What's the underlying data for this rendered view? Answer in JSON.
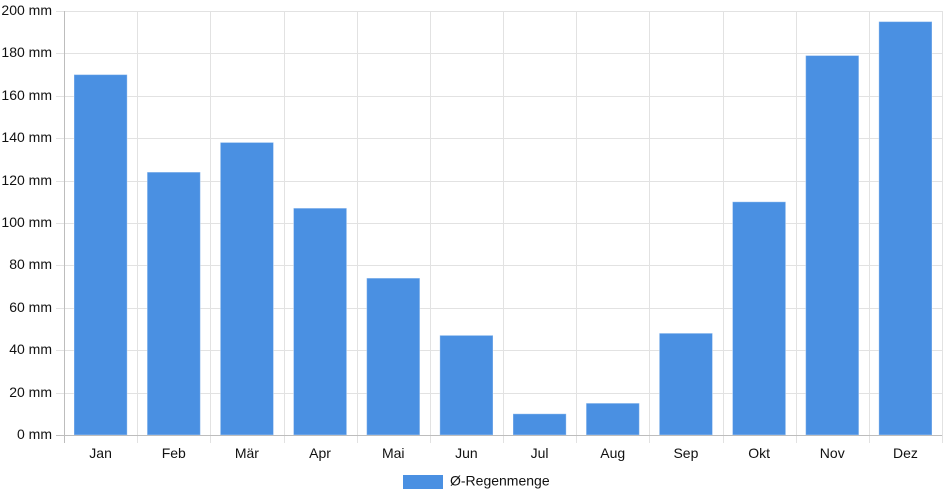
{
  "chart_data": {
    "type": "bar",
    "title": "",
    "xlabel": "",
    "ylabel": "",
    "categories": [
      "Jan",
      "Feb",
      "Mär",
      "Apr",
      "Mai",
      "Jun",
      "Jul",
      "Aug",
      "Sep",
      "Okt",
      "Nov",
      "Dez"
    ],
    "series": [
      {
        "name": "Ø-Regenmenge",
        "values": [
          170,
          124,
          138,
          107,
          74,
          47,
          10,
          15,
          48,
          110,
          179,
          195
        ],
        "color": "#4a90e2"
      }
    ],
    "ylim": [
      0,
      200
    ],
    "y_ticks": [
      0,
      20,
      40,
      60,
      80,
      100,
      120,
      140,
      160,
      180,
      200
    ],
    "y_tick_labels": [
      "0 mm",
      "20 mm",
      "40 mm",
      "60 mm",
      "80 mm",
      "100 mm",
      "120 mm",
      "140 mm",
      "160 mm",
      "180 mm",
      "200 mm"
    ],
    "grid": true,
    "legend_position": "bottom-center"
  }
}
